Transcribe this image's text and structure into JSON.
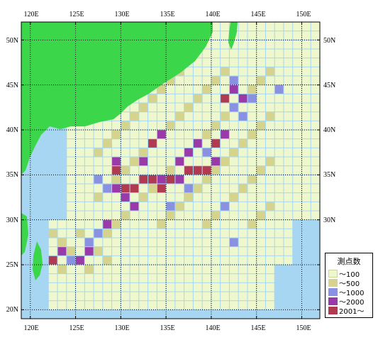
{
  "map": {
    "lon_labels": [
      "120E",
      "125E",
      "130E",
      "135E",
      "140E",
      "145E",
      "150E"
    ],
    "lat_labels": [
      "50N",
      "45N",
      "40N",
      "35N",
      "30N",
      "25N",
      "20N"
    ],
    "extent": {
      "lon": [
        119,
        152
      ],
      "lat": [
        19,
        52
      ]
    },
    "colors": {
      "sea": "#a7d6f3",
      "land": "#3cd64a",
      "cell_100": "#eef8cc",
      "cell_500": "#d6d48c",
      "cell_1000": "#8a90e2",
      "cell_2000": "#9a3aa8",
      "cell_2001": "#b03a50",
      "grid": "#000000"
    }
  },
  "legend": {
    "title": "測点数",
    "items": [
      {
        "label": "～100",
        "color": "#eef8cc"
      },
      {
        "label": "～500",
        "color": "#d6d48c"
      },
      {
        "label": "～1000",
        "color": "#8a90e2"
      },
      {
        "label": "～2000",
        "color": "#9a3aa8"
      },
      {
        "label": "2001～",
        "color": "#b03a50"
      }
    ]
  }
}
